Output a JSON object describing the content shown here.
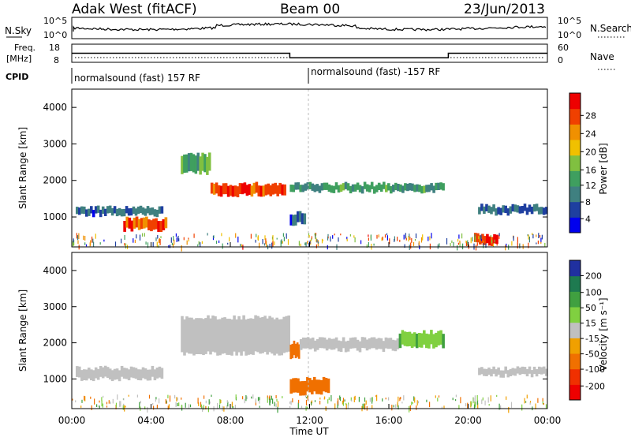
{
  "header": {
    "station": "Adak West (fitACF)",
    "beam": "Beam 00",
    "date": "23/Jun/2013"
  },
  "noise_panel": {
    "left_label": "N.Sky",
    "right_label": "N.Search",
    "top_tick": "10^5",
    "bottom_tick": "10^0"
  },
  "freq_panel": {
    "left_label_1": "Freq.",
    "left_label_2": "[MHz]",
    "left_ticks": [
      "18",
      "8"
    ],
    "right_label": "Nave",
    "right_ticks": [
      "60",
      "0"
    ]
  },
  "cpid_panel": {
    "label": "CPID",
    "segments": [
      {
        "text": "normalsound (fast) 157 RF",
        "start_hour": 0
      },
      {
        "text": "normalsound (fast) -157 RF",
        "start_hour": 12
      }
    ]
  },
  "power_panel": {
    "ylabel": "Slant Range [km]",
    "yticks": [
      "4000",
      "3000",
      "2000",
      "1000"
    ],
    "colorbar_label": "Power [dB]",
    "colorbar_ticks": [
      "28",
      "24",
      "20",
      "16",
      "12",
      "8",
      "4"
    ],
    "colorbar_colors": [
      "#0000ee",
      "#1e3fa0",
      "#3f8080",
      "#3f9f5f",
      "#80c040",
      "#f0c000",
      "#f09000",
      "#f04000",
      "#ee0000"
    ]
  },
  "velocity_panel": {
    "ylabel": "Slant Range [km]",
    "yticks": [
      "4000",
      "3000",
      "2000",
      "1000"
    ],
    "colorbar_label": "Velocity [m s⁻¹]",
    "colorbar_ticks": [
      "200",
      "100",
      "50",
      "15",
      "-15",
      "-50",
      "-100",
      "-200"
    ],
    "colorbar_colors": [
      "#2030a0",
      "#1e7a50",
      "#40a040",
      "#80d040",
      "#c0c0c0",
      "#f0a000",
      "#f07000",
      "#f03000",
      "#ee0000"
    ]
  },
  "xaxis": {
    "ticks": [
      "00:00",
      "04:00",
      "08:00",
      "12:00",
      "16:00",
      "20:00",
      "00:00"
    ],
    "label": "Time UT"
  },
  "chart_data": {
    "type": "heatmap",
    "title": "Adak West (fitACF)",
    "x_range_hours": [
      0,
      24
    ],
    "y_range_km": [
      180,
      4500
    ],
    "xlabel": "Time UT",
    "ylabel": "Slant Range [km]",
    "freq_steps": [
      {
        "from_hour": 0,
        "to_hour": 11,
        "freq_mhz": 13
      },
      {
        "from_hour": 11,
        "to_hour": 19,
        "freq_mhz": 10.5
      },
      {
        "from_hour": 19,
        "to_hour": 24,
        "freq_mhz": 13
      }
    ],
    "power_bands": [
      {
        "from_hour": 0.2,
        "to_hour": 4.6,
        "range_km": [
          1050,
          1250
        ],
        "power_db": 8
      },
      {
        "from_hour": 2.6,
        "to_hour": 4.8,
        "range_km": [
          650,
          950
        ],
        "power_db": 26
      },
      {
        "from_hour": 5.5,
        "to_hour": 7.0,
        "range_km": [
          2200,
          2700
        ],
        "power_db": 14
      },
      {
        "from_hour": 7.0,
        "to_hour": 10.8,
        "range_km": [
          1600,
          1900
        ],
        "power_db": 26
      },
      {
        "from_hour": 11.0,
        "to_hour": 18.8,
        "range_km": [
          1700,
          1900
        ],
        "power_db": 12
      },
      {
        "from_hour": 11.0,
        "to_hour": 11.8,
        "range_km": [
          800,
          1100
        ],
        "power_db": 8
      },
      {
        "from_hour": 20.5,
        "to_hour": 24.0,
        "range_km": [
          1100,
          1300
        ],
        "power_db": 8
      },
      {
        "from_hour": 20.3,
        "to_hour": 21.5,
        "range_km": [
          250,
          500
        ],
        "power_db": 28
      }
    ],
    "velocity_bands": [
      {
        "from_hour": 0.2,
        "to_hour": 4.6,
        "range_km": [
          1000,
          1300
        ],
        "velocity_ms": 0
      },
      {
        "from_hour": 5.5,
        "to_hour": 11.0,
        "range_km": [
          1700,
          2700
        ],
        "velocity_ms": 0
      },
      {
        "from_hour": 11.0,
        "to_hour": 11.5,
        "range_km": [
          1600,
          2000
        ],
        "velocity_ms": -50
      },
      {
        "from_hour": 11.0,
        "to_hour": 13.0,
        "range_km": [
          600,
          1000
        ],
        "velocity_ms": -70
      },
      {
        "from_hour": 11.5,
        "to_hour": 16.5,
        "range_km": [
          1800,
          2100
        ],
        "velocity_ms": -10
      },
      {
        "from_hour": 16.5,
        "to_hour": 18.8,
        "range_km": [
          1900,
          2300
        ],
        "velocity_ms": 30
      },
      {
        "from_hour": 20.5,
        "to_hour": 24.0,
        "range_km": [
          1100,
          1300
        ],
        "velocity_ms": 0
      }
    ]
  }
}
